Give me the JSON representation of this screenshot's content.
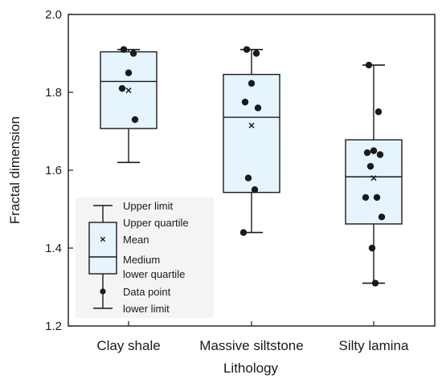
{
  "chart_data": {
    "type": "box",
    "title": "",
    "xlabel": "Lithology",
    "ylabel": "Fractal dimension",
    "ylim": [
      1.2,
      2.0
    ],
    "yticks": [
      "1.2",
      "1.4",
      "1.6",
      "1.8",
      "2.0"
    ],
    "categories": [
      "Clay shale",
      "Massive siltstone",
      "Silty lamina"
    ],
    "box_fill": "#e6f5fd",
    "line_color": "#1a1a1a",
    "boxes": [
      {
        "lower_limit": 1.62,
        "lower_quartile": 1.707,
        "median": 1.828,
        "upper_quartile": 1.904,
        "upper_limit": 1.91,
        "mean": 1.805,
        "points": [
          1.91,
          1.9,
          1.85,
          1.81,
          1.73
        ]
      },
      {
        "lower_limit": 1.44,
        "lower_quartile": 1.543,
        "median": 1.736,
        "upper_quartile": 1.846,
        "upper_limit": 1.91,
        "mean": 1.715,
        "points": [
          1.91,
          1.9,
          1.823,
          1.775,
          1.76,
          1.58,
          1.55,
          1.44
        ]
      },
      {
        "lower_limit": 1.31,
        "lower_quartile": 1.462,
        "median": 1.583,
        "upper_quartile": 1.678,
        "upper_limit": 1.87,
        "mean": 1.58,
        "points": [
          1.87,
          1.75,
          1.65,
          1.645,
          1.64,
          1.61,
          1.53,
          1.53,
          1.48,
          1.4,
          1.31
        ]
      }
    ],
    "legend": {
      "position": "bottom-left",
      "entries": [
        "Upper limit",
        "Upper quartile",
        "Mean",
        "Medium",
        "lower quartile",
        "Data point",
        "lower limit"
      ]
    }
  }
}
